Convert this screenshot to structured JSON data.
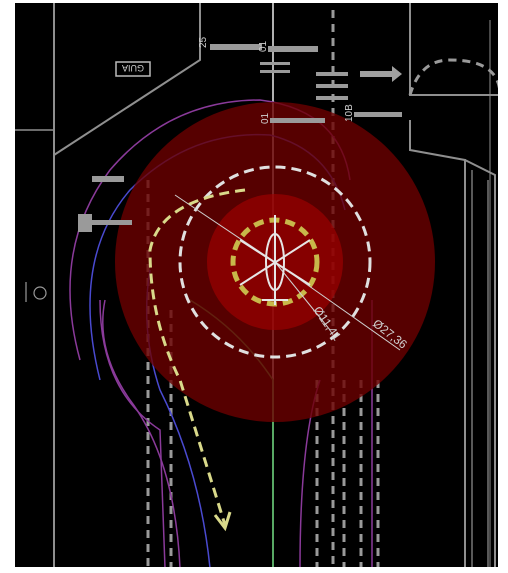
{
  "drawing": {
    "circle_outer_label": "Ø27,36",
    "circle_inner_label": "Ø11,41",
    "marking_1": "25",
    "marking_2": "01",
    "marking_3": "01",
    "marking_4": "10B",
    "sign_text": "GUIA"
  },
  "colors": {
    "background": "#000000",
    "frame": "#ffffff",
    "linework": "#9a9a9a",
    "safety_zone": "#6b0000",
    "inner_zone": "#a00000",
    "dashed_circle": "#e0e0e0",
    "touchdown_circle": "#c8b84a",
    "approach_arrow": "#d9d98a",
    "path_purple": "#8a3a9a",
    "path_blue": "#4a4ad0",
    "path_green": "#3aa64a"
  },
  "icons": [
    "helicopter-symbol-icon",
    "flow-arrow-icon",
    "sign-post-icon"
  ]
}
